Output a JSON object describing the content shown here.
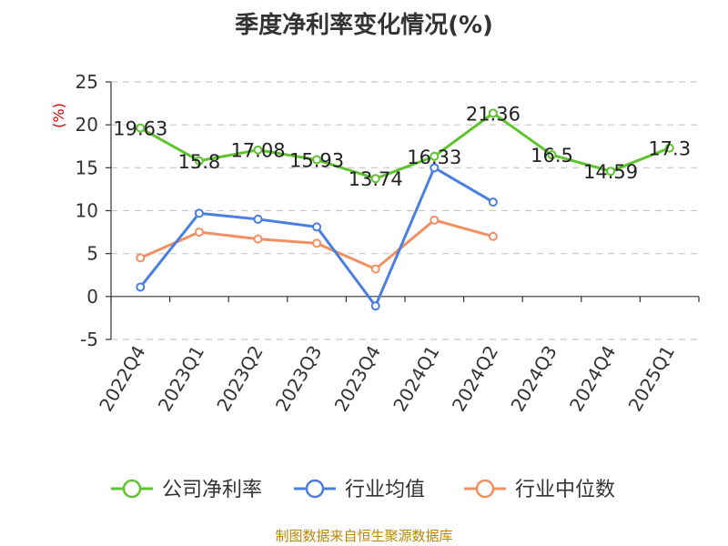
{
  "chart_data": {
    "type": "line",
    "title": "季度净利率变化情况(%)",
    "unit_label": "(%)",
    "categories": [
      "2022Q4",
      "2023Q1",
      "2023Q2",
      "2023Q3",
      "2023Q4",
      "2024Q1",
      "2024Q2",
      "2024Q3",
      "2024Q4",
      "2025Q1"
    ],
    "y_ticks": [
      25,
      20,
      15,
      10,
      5,
      0,
      -5
    ],
    "ylim": [
      -5,
      25
    ],
    "grid": "horizontal-dashed",
    "legend_position": "bottom",
    "series": [
      {
        "name": "公司净利率",
        "color": "#5ec42d",
        "values": [
          19.63,
          15.8,
          17.08,
          15.93,
          13.74,
          16.33,
          21.36,
          16.5,
          14.59,
          17.3
        ],
        "labels": [
          "19.63",
          "15.8",
          "17.08",
          "15.93",
          "13.74",
          "16.33",
          "21.36",
          "16.5",
          "14.59",
          "17.3"
        ]
      },
      {
        "name": "行业均值",
        "color": "#4a7fe0",
        "values": [
          1.1,
          9.7,
          9.0,
          8.1,
          -1.1,
          15.0,
          11.0,
          null,
          null,
          null
        ]
      },
      {
        "name": "行业中位数",
        "color": "#f39062",
        "values": [
          4.5,
          7.5,
          6.7,
          6.2,
          3.2,
          8.9,
          7.0,
          null,
          null,
          null
        ]
      }
    ]
  },
  "footer": {
    "source": "制图数据来自恒生聚源数据库"
  }
}
